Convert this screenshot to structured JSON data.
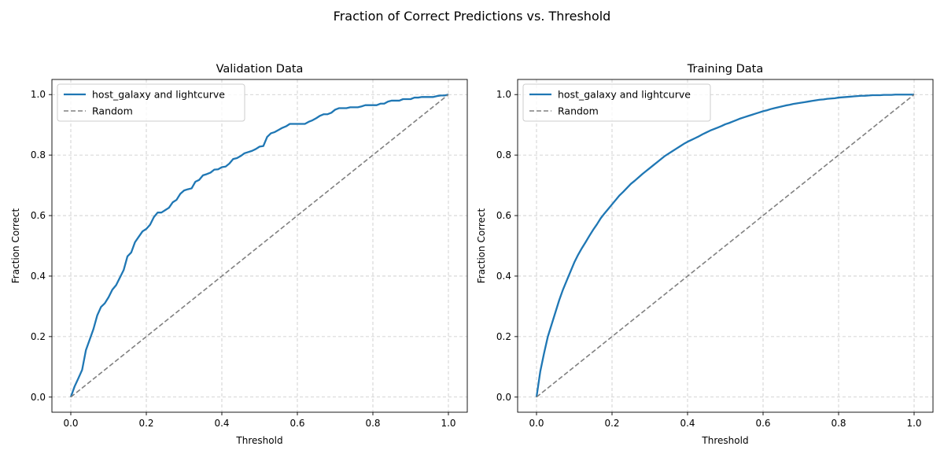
{
  "figure": {
    "suptitle": "Fraction of Correct Predictions vs. Threshold"
  },
  "chart_data": [
    {
      "type": "line",
      "title": "Validation Data",
      "xlabel": "Threshold",
      "ylabel": "Fraction Correct",
      "xlim": [
        -0.05,
        1.05
      ],
      "ylim": [
        -0.05,
        1.05
      ],
      "xticks": [
        "0.0",
        "0.2",
        "0.4",
        "0.6",
        "0.8",
        "1.0"
      ],
      "yticks": [
        "0.0",
        "0.2",
        "0.4",
        "0.6",
        "0.8",
        "1.0"
      ],
      "grid": true,
      "legend_position": "top-left",
      "series": [
        {
          "name": "host_galaxy and lightcurve",
          "color": "#1f77b4",
          "style": "solid",
          "x": [
            0.0,
            0.01,
            0.02,
            0.03,
            0.04,
            0.05,
            0.06,
            0.07,
            0.08,
            0.09,
            0.1,
            0.11,
            0.12,
            0.13,
            0.14,
            0.15,
            0.16,
            0.17,
            0.18,
            0.19,
            0.2,
            0.21,
            0.22,
            0.23,
            0.24,
            0.25,
            0.26,
            0.27,
            0.28,
            0.29,
            0.3,
            0.31,
            0.32,
            0.33,
            0.34,
            0.35,
            0.36,
            0.37,
            0.38,
            0.39,
            0.4,
            0.41,
            0.42,
            0.43,
            0.44,
            0.45,
            0.46,
            0.47,
            0.48,
            0.49,
            0.5,
            0.51,
            0.52,
            0.53,
            0.54,
            0.55,
            0.56,
            0.57,
            0.58,
            0.59,
            0.6,
            0.61,
            0.62,
            0.63,
            0.64,
            0.65,
            0.66,
            0.67,
            0.68,
            0.69,
            0.7,
            0.71,
            0.72,
            0.73,
            0.74,
            0.75,
            0.76,
            0.77,
            0.78,
            0.79,
            0.8,
            0.81,
            0.82,
            0.83,
            0.84,
            0.85,
            0.86,
            0.87,
            0.88,
            0.89,
            0.9,
            0.91,
            0.92,
            0.93,
            0.94,
            0.95,
            0.96,
            0.97,
            0.98,
            0.99,
            1.0
          ],
          "y": [
            0.0,
            0.035,
            0.062,
            0.09,
            0.155,
            0.19,
            0.225,
            0.27,
            0.298,
            0.31,
            0.33,
            0.355,
            0.37,
            0.395,
            0.42,
            0.465,
            0.478,
            0.512,
            0.53,
            0.548,
            0.556,
            0.57,
            0.595,
            0.61,
            0.61,
            0.618,
            0.626,
            0.644,
            0.652,
            0.672,
            0.683,
            0.687,
            0.69,
            0.712,
            0.718,
            0.733,
            0.737,
            0.742,
            0.752,
            0.753,
            0.76,
            0.762,
            0.772,
            0.787,
            0.79,
            0.797,
            0.806,
            0.81,
            0.814,
            0.82,
            0.828,
            0.83,
            0.86,
            0.872,
            0.876,
            0.883,
            0.89,
            0.895,
            0.903,
            0.903,
            0.903,
            0.903,
            0.903,
            0.91,
            0.915,
            0.922,
            0.93,
            0.935,
            0.935,
            0.94,
            0.95,
            0.955,
            0.955,
            0.955,
            0.958,
            0.958,
            0.958,
            0.961,
            0.965,
            0.965,
            0.965,
            0.965,
            0.97,
            0.97,
            0.977,
            0.98,
            0.98,
            0.98,
            0.985,
            0.985,
            0.985,
            0.99,
            0.99,
            0.992,
            0.992,
            0.992,
            0.992,
            0.995,
            0.997,
            0.997,
            1.0
          ]
        },
        {
          "name": "Random",
          "color": "#808080",
          "style": "dashed",
          "x": [
            0.0,
            1.0
          ],
          "y": [
            0.0,
            1.0
          ]
        }
      ]
    },
    {
      "type": "line",
      "title": "Training Data",
      "xlabel": "Threshold",
      "ylabel": "Fraction Correct",
      "xlim": [
        -0.05,
        1.05
      ],
      "ylim": [
        -0.05,
        1.05
      ],
      "xticks": [
        "0.0",
        "0.2",
        "0.4",
        "0.6",
        "0.8",
        "1.0"
      ],
      "yticks": [
        "0.0",
        "0.2",
        "0.4",
        "0.6",
        "0.8",
        "1.0"
      ],
      "grid": true,
      "legend_position": "top-left",
      "series": [
        {
          "name": "host_galaxy and lightcurve",
          "color": "#1f77b4",
          "style": "solid",
          "x": [
            0.0,
            0.01,
            0.02,
            0.03,
            0.04,
            0.05,
            0.06,
            0.07,
            0.08,
            0.09,
            0.1,
            0.11,
            0.12,
            0.13,
            0.14,
            0.15,
            0.16,
            0.17,
            0.18,
            0.19,
            0.2,
            0.21,
            0.22,
            0.23,
            0.24,
            0.25,
            0.26,
            0.27,
            0.28,
            0.29,
            0.3,
            0.31,
            0.32,
            0.33,
            0.34,
            0.35,
            0.36,
            0.37,
            0.38,
            0.39,
            0.4,
            0.41,
            0.42,
            0.43,
            0.44,
            0.45,
            0.46,
            0.47,
            0.48,
            0.49,
            0.5,
            0.51,
            0.52,
            0.53,
            0.54,
            0.55,
            0.56,
            0.57,
            0.58,
            0.59,
            0.6,
            0.61,
            0.62,
            0.63,
            0.64,
            0.65,
            0.66,
            0.67,
            0.68,
            0.69,
            0.7,
            0.71,
            0.72,
            0.73,
            0.74,
            0.75,
            0.76,
            0.77,
            0.78,
            0.79,
            0.8,
            0.81,
            0.82,
            0.83,
            0.84,
            0.85,
            0.86,
            0.87,
            0.88,
            0.89,
            0.9,
            0.91,
            0.92,
            0.93,
            0.94,
            0.95,
            0.96,
            0.97,
            0.98,
            0.99,
            1.0
          ],
          "y": [
            0.0,
            0.085,
            0.145,
            0.2,
            0.24,
            0.28,
            0.32,
            0.355,
            0.385,
            0.415,
            0.445,
            0.47,
            0.492,
            0.512,
            0.533,
            0.553,
            0.571,
            0.591,
            0.607,
            0.622,
            0.637,
            0.652,
            0.667,
            0.679,
            0.692,
            0.705,
            0.715,
            0.726,
            0.737,
            0.747,
            0.757,
            0.767,
            0.777,
            0.787,
            0.797,
            0.805,
            0.813,
            0.821,
            0.829,
            0.837,
            0.844,
            0.85,
            0.856,
            0.862,
            0.869,
            0.875,
            0.881,
            0.886,
            0.891,
            0.896,
            0.902,
            0.906,
            0.911,
            0.916,
            0.921,
            0.925,
            0.929,
            0.933,
            0.937,
            0.941,
            0.945,
            0.948,
            0.952,
            0.955,
            0.958,
            0.961,
            0.964,
            0.966,
            0.969,
            0.971,
            0.973,
            0.975,
            0.977,
            0.979,
            0.981,
            0.983,
            0.984,
            0.986,
            0.987,
            0.988,
            0.99,
            0.991,
            0.992,
            0.993,
            0.994,
            0.995,
            0.996,
            0.996,
            0.997,
            0.998,
            0.998,
            0.998,
            0.999,
            0.999,
            0.999,
            1.0,
            1.0,
            1.0,
            1.0,
            1.0,
            1.0
          ]
        },
        {
          "name": "Random",
          "color": "#808080",
          "style": "dashed",
          "x": [
            0.0,
            1.0
          ],
          "y": [
            0.0,
            1.0
          ]
        }
      ]
    }
  ]
}
